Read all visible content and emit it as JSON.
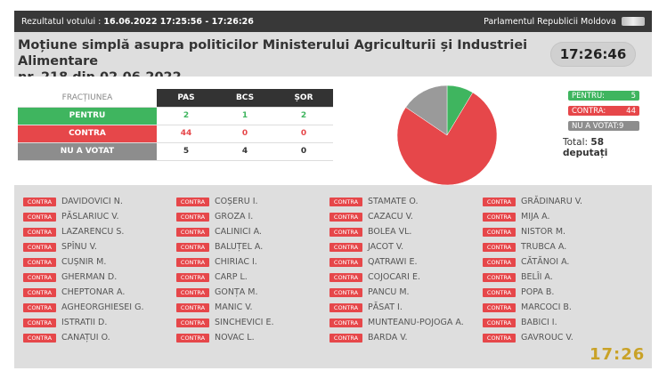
{
  "header": {
    "result_label": "Rezultatul votului :",
    "result_value": "16.06.2022 17:25:56 - 17:26:26",
    "institution": "Parlamentul Republicii Moldova"
  },
  "title_line1": "Moțiune simplă asupra politicilor Ministerului Agriculturii și Industriei Alimentare",
  "title_line2": "nr. 218 din 02.06.2022",
  "clock": "17:26:46",
  "table": {
    "header": [
      "FRACȚIUNEA",
      "PAS",
      "BCS",
      "ȘOR"
    ],
    "rows": [
      {
        "label": "PENTRU",
        "values": [
          "2",
          "1",
          "2"
        ]
      },
      {
        "label": "CONTRA",
        "values": [
          "44",
          "0",
          "0"
        ]
      },
      {
        "label": "NU A VOTAT",
        "values": [
          "5",
          "4",
          "0"
        ]
      }
    ]
  },
  "legend": {
    "pentru_label": "PENTRU:",
    "pentru_value": "5",
    "contra_label": "CONTRA:",
    "contra_value": "44",
    "nav_label": "NU A VOTAT:9",
    "total_label": "Total:",
    "total_value": "58 deputați"
  },
  "colors": {
    "pentru": "#3fb55f",
    "contra": "#e6474a",
    "nav": "#9a9a9a"
  },
  "chart_data": {
    "type": "pie",
    "categories": [
      "PENTRU",
      "CONTRA",
      "NU A VOTAT"
    ],
    "values": [
      5,
      44,
      9
    ]
  },
  "vote_tag": "CONTRA",
  "deputies": [
    [
      "DAVIDOVICI N.",
      "PĂSLARIUC V.",
      "LAZARENCU S.",
      "SPÎNU V.",
      "CUȘNIR M.",
      "GHERMAN D.",
      "CHEPTONAR A.",
      "AGHEORGHIESEI G.",
      "ISTRATII D.",
      "CANAȚUI O."
    ],
    [
      "COȘERU I.",
      "GROZA I.",
      "CALINICI A.",
      "BALUȚEL A.",
      "CHIRIAC I.",
      "CARP L.",
      "GONȚA M.",
      "MANIC V.",
      "SINCHEVICI E.",
      "NOVAC L."
    ],
    [
      "STAMATE O.",
      "CAZACU V.",
      "BOLEA VL.",
      "JACOT V.",
      "QATRAWI E.",
      "COJOCARI E.",
      "PANCU M.",
      "PĂSAT I.",
      "MUNTEANU-POJOGA A.",
      "BARDA V."
    ],
    [
      "GRĂDINARU V.",
      "MIJA A.",
      "NISTOR M.",
      "TRUBCA A.",
      "CĂTĂNOI A.",
      "BELÎI A.",
      "POPA B.",
      "MARCOCI B.",
      "BABICI I.",
      "GAVROUC V."
    ]
  ],
  "bottom_clock": "17:26"
}
